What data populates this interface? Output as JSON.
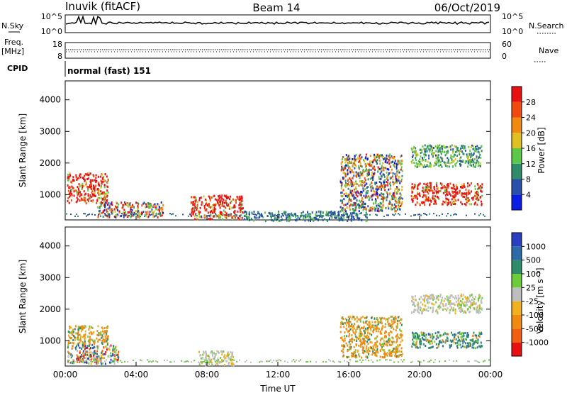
{
  "header": {
    "station": "Inuvik (fitACF)",
    "beam": "Beam 14",
    "date": "06/Oct/2019"
  },
  "top_panels": {
    "nsky_label": "N.Sky",
    "nsky_ticks": [
      "10^5",
      "10^0"
    ],
    "nsearch_label": "N.Search",
    "nsearch_ticks": [
      "10^5",
      "10^0"
    ],
    "freq_label": "Freq.",
    "freq_unit": "[MHz]",
    "freq_ticks": [
      "18",
      "8"
    ],
    "nave_label": "Nave",
    "nave_ticks": [
      "60",
      "0"
    ],
    "cpid_label": "CPID",
    "cpid_value": "normal (fast) 151"
  },
  "chart_data": [
    {
      "type": "heatmap",
      "name": "power-panel",
      "ylabel": "Slant Range [km]",
      "yticks": [
        "1000",
        "2000",
        "3000",
        "4000"
      ],
      "ylim": [
        200,
        4600
      ],
      "x_tick_labels": [
        "00:00",
        "04:00",
        "08:00",
        "12:00",
        "16:00",
        "20:00",
        "00:00"
      ],
      "colorbar": {
        "label": "Power [dB]",
        "ticks": [
          "4",
          "8",
          "12",
          "16",
          "20",
          "24",
          "28"
        ],
        "colors": [
          "#0a1ee6",
          "#2a4fa8",
          "#2f8c6a",
          "#5cc84a",
          "#e0c020",
          "#f08a10",
          "#f04a10",
          "#e81010"
        ]
      },
      "echo_regions": [
        {
          "time": [
            0.1,
            2.4
          ],
          "range": [
            750,
            1700
          ],
          "level": "high"
        },
        {
          "time": [
            1.8,
            5.5
          ],
          "range": [
            300,
            800
          ],
          "level": "mixed"
        },
        {
          "time": [
            7.0,
            10.0
          ],
          "range": [
            250,
            1000
          ],
          "level": "high"
        },
        {
          "time": [
            10.0,
            17.0
          ],
          "range": [
            200,
            500
          ],
          "level": "low"
        },
        {
          "time": [
            15.5,
            19.0
          ],
          "range": [
            500,
            2300
          ],
          "level": "mixed"
        },
        {
          "time": [
            19.5,
            23.5
          ],
          "range": [
            1900,
            2600
          ],
          "level": "mid"
        },
        {
          "time": [
            19.5,
            23.5
          ],
          "range": [
            700,
            1400
          ],
          "level": "high"
        }
      ]
    },
    {
      "type": "heatmap",
      "name": "velocity-panel",
      "ylabel": "Slant Range [km]",
      "yticks": [
        "1000",
        "2000",
        "3000",
        "4000"
      ],
      "ylim": [
        200,
        4600
      ],
      "x_tick_labels": [
        "00:00",
        "04:00",
        "08:00",
        "12:00",
        "16:00",
        "20:00",
        "00:00"
      ],
      "xlabel": "Time UT",
      "colorbar": {
        "label": "Velocity [m s⁻¹]",
        "ticks": [
          "1000",
          "500",
          "100",
          "25",
          "-25",
          "-100",
          "-500",
          "-1000"
        ],
        "colors": [
          "#2a3fc0",
          "#2c6aa8",
          "#2f8c6a",
          "#6ccc3a",
          "#bebebe",
          "#f0b020",
          "#f08a10",
          "#f06010",
          "#e81010"
        ]
      },
      "echo_regions": [
        {
          "time": [
            0.1,
            2.4
          ],
          "range": [
            900,
            1500
          ],
          "level": "negative"
        },
        {
          "time": [
            0.1,
            3.0
          ],
          "range": [
            300,
            900
          ],
          "level": "mixed"
        },
        {
          "time": [
            7.5,
            9.5
          ],
          "range": [
            250,
            700
          ],
          "level": "ground"
        },
        {
          "time": [
            15.5,
            19.0
          ],
          "range": [
            500,
            1800
          ],
          "level": "negative"
        },
        {
          "time": [
            19.5,
            23.5
          ],
          "range": [
            1900,
            2500
          ],
          "level": "ground"
        },
        {
          "time": [
            19.5,
            23.5
          ],
          "range": [
            800,
            1300
          ],
          "level": "positive"
        }
      ]
    }
  ]
}
